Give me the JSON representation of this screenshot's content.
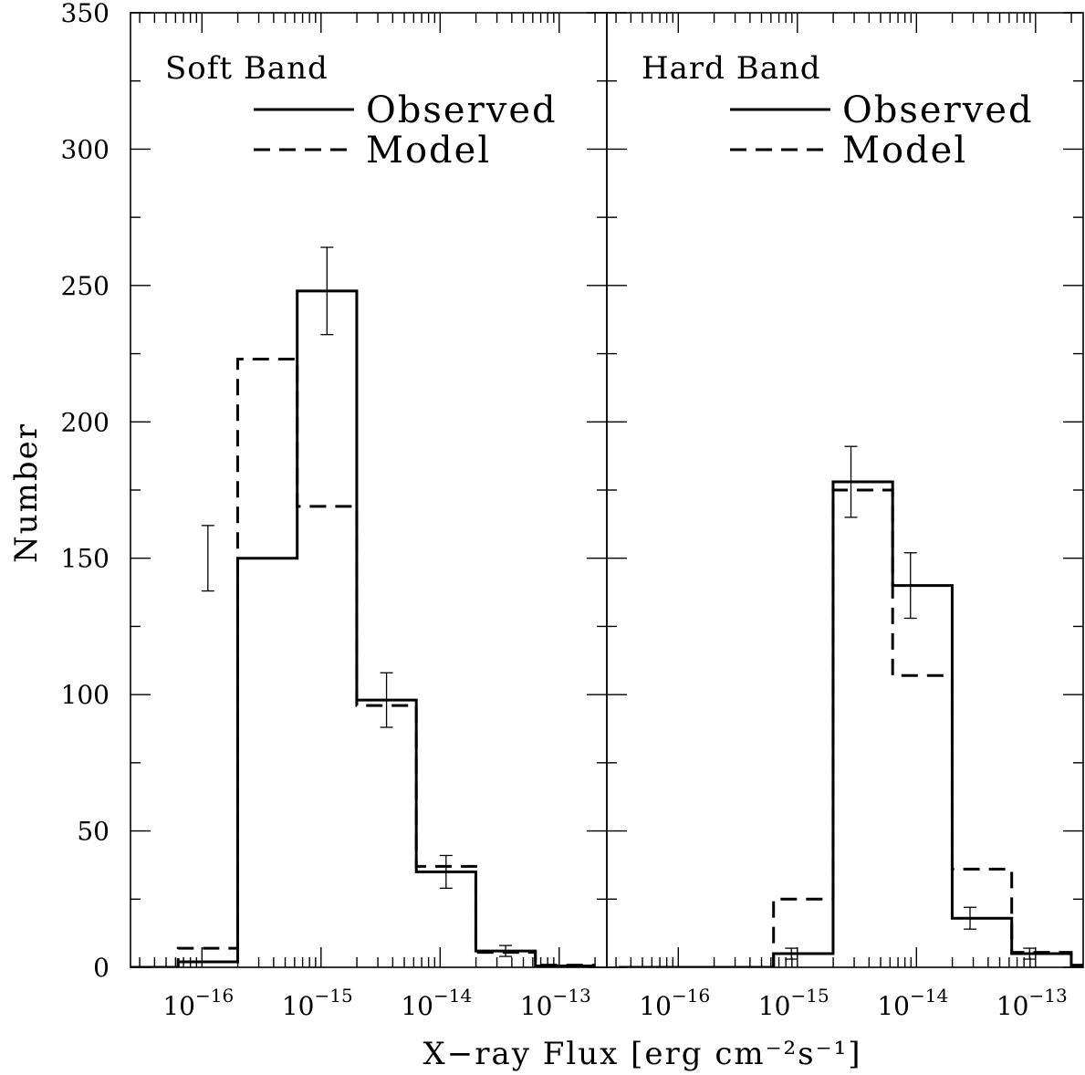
{
  "chart_data": {
    "type": "histogram",
    "ylabel": "Number",
    "xlabel": "X−ray Flux [erg cm⁻²s⁻¹]",
    "xscale": "log",
    "xlim": [
      -16.6,
      -12.6
    ],
    "ylim": [
      0,
      350
    ],
    "y_ticks": [
      "0",
      "50",
      "100",
      "150",
      "200",
      "250",
      "300",
      "350"
    ],
    "x_tick_labels": [
      {
        "exp": -16,
        "base": "10",
        "sup": "−16"
      },
      {
        "exp": -15,
        "base": "10",
        "sup": "−15"
      },
      {
        "exp": -14,
        "base": "10",
        "sup": "−14"
      },
      {
        "exp": -13,
        "base": "10",
        "sup": "−13"
      }
    ],
    "legend": {
      "placement": "top-right",
      "observed": "Observed",
      "model": "Model"
    },
    "panels": [
      {
        "title": "Soft Band",
        "bin_edges_log10": [
          -16.69,
          -16.2,
          -15.7,
          -15.2,
          -14.7,
          -14.2,
          -13.7,
          -13.2,
          -12.7
        ],
        "observed": [
          0,
          2,
          150,
          248,
          98,
          35,
          6,
          0.5
        ],
        "model": [
          0,
          7,
          223,
          169,
          96,
          37,
          5.5,
          0.8
        ],
        "errors": [
          {
            "x": -15.95,
            "lo": 138,
            "hi": 162
          },
          {
            "x": -14.95,
            "lo": 232,
            "hi": 264
          },
          {
            "x": -14.45,
            "lo": 88,
            "hi": 108
          },
          {
            "x": -13.95,
            "lo": 29,
            "hi": 41
          },
          {
            "x": -13.45,
            "lo": 4,
            "hi": 8
          }
        ]
      },
      {
        "title": "Hard Band",
        "bin_edges_log10": [
          -16.5,
          -15.7,
          -15.2,
          -14.7,
          -14.2,
          -13.7,
          -13.2,
          -12.7,
          -12.57
        ],
        "observed": [
          0,
          0,
          5,
          178,
          140,
          18,
          5,
          0.3
        ],
        "model": [
          0,
          0,
          25,
          175,
          107,
          36,
          5.5,
          0.8
        ],
        "errors": [
          {
            "x": -15.05,
            "lo": 3,
            "hi": 7
          },
          {
            "x": -14.55,
            "lo": 165,
            "hi": 191
          },
          {
            "x": -14.05,
            "lo": 128,
            "hi": 152
          },
          {
            "x": -13.55,
            "lo": 14,
            "hi": 22
          },
          {
            "x": -13.05,
            "lo": 3,
            "hi": 7
          }
        ]
      }
    ]
  }
}
